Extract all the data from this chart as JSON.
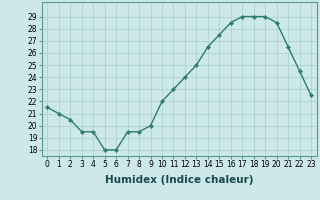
{
  "title": "",
  "xlabel": "Humidex (Indice chaleur)",
  "ylabel": "",
  "x": [
    0,
    1,
    2,
    3,
    4,
    5,
    6,
    7,
    8,
    9,
    10,
    11,
    12,
    13,
    14,
    15,
    16,
    17,
    18,
    19,
    20,
    21,
    22,
    23
  ],
  "y": [
    21.5,
    21.0,
    20.5,
    19.5,
    19.5,
    18.0,
    18.0,
    19.5,
    19.5,
    20.0,
    22.0,
    23.0,
    24.0,
    25.0,
    26.5,
    27.5,
    28.5,
    29.0,
    29.0,
    29.0,
    28.5,
    26.5,
    24.5,
    22.5
  ],
  "line_color": "#2e7d6e",
  "marker": "D",
  "marker_size": 2.2,
  "bg_color": "#cce8ea",
  "grid_color": "#aacdd0",
  "ylim": [
    17.5,
    30.2
  ],
  "xlim": [
    -0.5,
    23.5
  ],
  "yticks": [
    18,
    19,
    20,
    21,
    22,
    23,
    24,
    25,
    26,
    27,
    28,
    29
  ],
  "xticks": [
    0,
    1,
    2,
    3,
    4,
    5,
    6,
    7,
    8,
    9,
    10,
    11,
    12,
    13,
    14,
    15,
    16,
    17,
    18,
    19,
    20,
    21,
    22,
    23
  ],
  "tick_fontsize": 5.5,
  "xlabel_fontsize": 7.5,
  "line_width": 1.0
}
